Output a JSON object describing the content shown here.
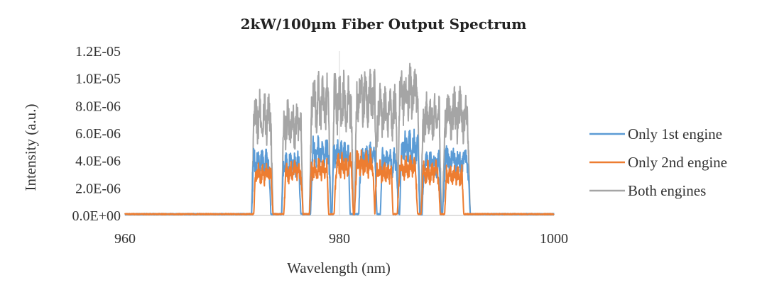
{
  "chart_data": {
    "type": "line",
    "title": "2kW/100µm Fiber Output Spectrum",
    "xlabel": "Wavelength (nm)",
    "ylabel": "Intensity (a.u.)",
    "xlim": [
      960,
      1000
    ],
    "ylim": [
      0,
      1.2e-05
    ],
    "x_ticks": [
      960,
      980,
      1000
    ],
    "x_tick_labels": [
      "960",
      "980",
      "1000"
    ],
    "y_ticks": [
      0,
      2e-06,
      4e-06,
      6e-06,
      8e-06,
      1e-05,
      1.2e-05
    ],
    "y_tick_labels": [
      "0.0E+00",
      "2.0E-06",
      "4.0E-06",
      "6.0E-06",
      "8.0E-06",
      "1.0E-05",
      "1.2E-05"
    ],
    "grid": "vertical",
    "legend_position": "right",
    "baseline": 1e-07,
    "series": [
      {
        "name": "Only 1st engine",
        "color": "#5B9BD5",
        "peaks": [
          {
            "start": 971.8,
            "end": 973.6,
            "level": 4.4e-06
          },
          {
            "start": 974.6,
            "end": 976.4,
            "level": 4.2e-06
          },
          {
            "start": 977.3,
            "end": 979.2,
            "level": 5.2e-06
          },
          {
            "start": 979.3,
            "end": 981.0,
            "level": 5.1e-06
          },
          {
            "start": 981.8,
            "end": 983.5,
            "level": 4.8e-06
          },
          {
            "start": 983.8,
            "end": 985.5,
            "level": 4.4e-06
          },
          {
            "start": 985.6,
            "end": 987.5,
            "level": 5.6e-06
          },
          {
            "start": 987.7,
            "end": 989.5,
            "level": 4.3e-06
          },
          {
            "start": 989.6,
            "end": 992.2,
            "level": 4.6e-06
          }
        ]
      },
      {
        "name": "Only 2nd engine",
        "color": "#ED7D31",
        "peaks": [
          {
            "start": 972.0,
            "end": 973.8,
            "level": 3.4e-06
          },
          {
            "start": 974.8,
            "end": 976.6,
            "level": 3.6e-06
          },
          {
            "start": 977.2,
            "end": 979.0,
            "level": 3.8e-06
          },
          {
            "start": 979.5,
            "end": 981.3,
            "level": 4.1e-06
          },
          {
            "start": 981.4,
            "end": 983.3,
            "level": 4.3e-06
          },
          {
            "start": 983.3,
            "end": 985.0,
            "level": 3.6e-06
          },
          {
            "start": 985.4,
            "end": 987.3,
            "level": 3.9e-06
          },
          {
            "start": 987.6,
            "end": 989.4,
            "level": 3.6e-06
          },
          {
            "start": 989.8,
            "end": 991.6,
            "level": 3.3e-06
          }
        ]
      },
      {
        "name": "Both engines",
        "color": "#A5A5A5",
        "peaks": [
          {
            "start": 971.8,
            "end": 973.8,
            "level": 8.2e-06
          },
          {
            "start": 974.6,
            "end": 976.6,
            "level": 7.6e-06
          },
          {
            "start": 977.2,
            "end": 979.2,
            "level": 9.3e-06
          },
          {
            "start": 979.3,
            "end": 981.3,
            "level": 9.4e-06
          },
          {
            "start": 981.4,
            "end": 983.5,
            "level": 9.9e-06
          },
          {
            "start": 983.3,
            "end": 985.5,
            "level": 8.5e-06
          },
          {
            "start": 985.4,
            "end": 987.5,
            "level": 1e-05
          },
          {
            "start": 987.6,
            "end": 989.5,
            "level": 8e-06
          },
          {
            "start": 989.6,
            "end": 992.2,
            "level": 8.3e-06
          }
        ]
      }
    ]
  }
}
